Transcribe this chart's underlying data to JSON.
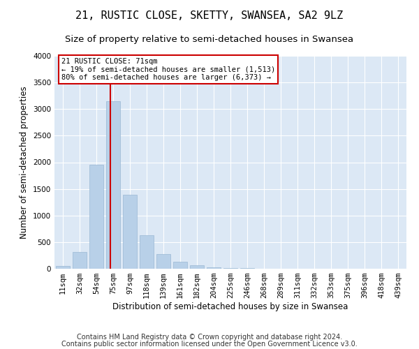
{
  "title": "21, RUSTIC CLOSE, SKETTY, SWANSEA, SA2 9LZ",
  "subtitle": "Size of property relative to semi-detached houses in Swansea",
  "xlabel": "Distribution of semi-detached houses by size in Swansea",
  "ylabel": "Number of semi-detached properties",
  "footnote1": "Contains HM Land Registry data © Crown copyright and database right 2024.",
  "footnote2": "Contains public sector information licensed under the Open Government Licence v3.0.",
  "categories": [
    "11sqm",
    "32sqm",
    "54sqm",
    "75sqm",
    "97sqm",
    "118sqm",
    "139sqm",
    "161sqm",
    "182sqm",
    "204sqm",
    "225sqm",
    "246sqm",
    "268sqm",
    "289sqm",
    "311sqm",
    "332sqm",
    "353sqm",
    "375sqm",
    "396sqm",
    "418sqm",
    "439sqm"
  ],
  "values": [
    50,
    310,
    1960,
    3150,
    1390,
    630,
    280,
    125,
    70,
    30,
    15,
    8,
    5,
    3,
    0,
    0,
    0,
    0,
    0,
    0,
    0
  ],
  "bar_color": "#b8d0e8",
  "bar_edge_color": "#9ab8d4",
  "property_line_label": "21 RUSTIC CLOSE: 71sqm",
  "annotation_line1": "← 19% of semi-detached houses are smaller (1,513)",
  "annotation_line2": "80% of semi-detached houses are larger (6,373) →",
  "annotation_box_color": "#ffffff",
  "annotation_box_edge": "#cc0000",
  "vline_color": "#cc0000",
  "vline_x_index": 2.85,
  "ylim": [
    0,
    4000
  ],
  "yticks": [
    0,
    500,
    1000,
    1500,
    2000,
    2500,
    3000,
    3500,
    4000
  ],
  "bg_color": "#ffffff",
  "plot_bg_color": "#dce8f5",
  "title_fontsize": 11,
  "subtitle_fontsize": 9.5,
  "axis_label_fontsize": 8.5,
  "tick_fontsize": 7.5,
  "footnote_fontsize": 7
}
